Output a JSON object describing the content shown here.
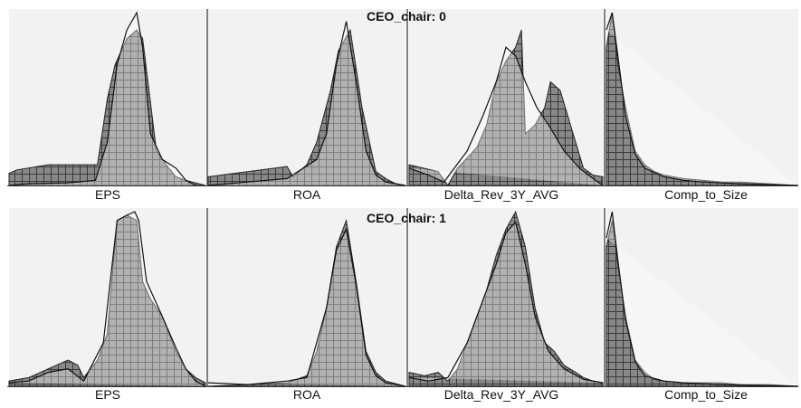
{
  "figure": {
    "background": "#ffffff",
    "panel_background": "#f2f2f2",
    "hist_fill": "#888888",
    "hist_grid": "#3a3a3a",
    "outline_color": "#111111",
    "divider_color": "#555555"
  },
  "chart_data": [
    {
      "type": "area",
      "group_title": "CEO_chair: 0",
      "panels": [
        {
          "variable": "EPS",
          "hist": [
            [
              0,
              7
            ],
            [
              0.04,
              9
            ],
            [
              0.2,
              12
            ],
            [
              0.32,
              12
            ],
            [
              0.45,
              12
            ],
            [
              0.5,
              50
            ],
            [
              0.54,
              70
            ],
            [
              0.6,
              85
            ],
            [
              0.65,
              90
            ],
            [
              0.68,
              85
            ],
            [
              0.75,
              20
            ],
            [
              0.8,
              12
            ],
            [
              0.85,
              5
            ],
            [
              0.9,
              3
            ],
            [
              1,
              0
            ]
          ],
          "curve": [
            [
              0,
              0
            ],
            [
              0.1,
              1
            ],
            [
              0.3,
              1.5
            ],
            [
              0.44,
              3
            ],
            [
              0.5,
              25
            ],
            [
              0.55,
              70
            ],
            [
              0.6,
              90
            ],
            [
              0.65,
              100
            ],
            [
              0.68,
              80
            ],
            [
              0.72,
              30
            ],
            [
              0.78,
              15
            ],
            [
              0.85,
              10
            ],
            [
              0.9,
              3
            ],
            [
              0.95,
              0
            ]
          ]
        },
        {
          "variable": "ROA",
          "hist": [
            [
              0,
              5
            ],
            [
              0.2,
              8
            ],
            [
              0.4,
              11
            ],
            [
              0.43,
              5
            ],
            [
              0.5,
              12
            ],
            [
              0.55,
              25
            ],
            [
              0.62,
              55
            ],
            [
              0.66,
              78
            ],
            [
              0.72,
              90
            ],
            [
              0.78,
              45
            ],
            [
              0.85,
              8
            ],
            [
              0.9,
              4
            ],
            [
              0.95,
              1
            ],
            [
              1,
              0
            ]
          ],
          "curve": [
            [
              0,
              0
            ],
            [
              0.2,
              2
            ],
            [
              0.4,
              4
            ],
            [
              0.55,
              15
            ],
            [
              0.6,
              30
            ],
            [
              0.65,
              70
            ],
            [
              0.7,
              95
            ],
            [
              0.75,
              60
            ],
            [
              0.8,
              20
            ],
            [
              0.85,
              6
            ],
            [
              0.9,
              2
            ],
            [
              1,
              0
            ]
          ]
        },
        {
          "variable": "Delta_Rev_3Y_AVG",
          "hist": [
            [
              0,
              12
            ],
            [
              0.15,
              8
            ],
            [
              0.2,
              0
            ],
            [
              0.25,
              10
            ],
            [
              0.35,
              22
            ],
            [
              0.4,
              35
            ],
            [
              0.45,
              60
            ],
            [
              0.5,
              72
            ],
            [
              0.55,
              80
            ],
            [
              0.58,
              90
            ],
            [
              0.6,
              30
            ],
            [
              0.65,
              35
            ],
            [
              0.7,
              45
            ],
            [
              0.73,
              60
            ],
            [
              0.78,
              55
            ],
            [
              0.82,
              40
            ],
            [
              0.86,
              25
            ],
            [
              0.9,
              10
            ],
            [
              0.95,
              6
            ],
            [
              1,
              5
            ]
          ],
          "curve": [
            [
              0,
              10
            ],
            [
              0.1,
              6
            ],
            [
              0.18,
              2
            ],
            [
              0.3,
              20
            ],
            [
              0.38,
              40
            ],
            [
              0.45,
              60
            ],
            [
              0.5,
              80
            ],
            [
              0.55,
              75
            ],
            [
              0.6,
              60
            ],
            [
              0.66,
              45
            ],
            [
              0.72,
              35
            ],
            [
              0.8,
              20
            ],
            [
              0.88,
              10
            ],
            [
              0.95,
              4
            ],
            [
              1,
              0
            ]
          ]
        },
        {
          "variable": "Comp_to_Size",
          "hist": [
            [
              0,
              80
            ],
            [
              0.03,
              100
            ],
            [
              0.06,
              70
            ],
            [
              0.1,
              45
            ],
            [
              0.15,
              20
            ],
            [
              0.2,
              12
            ],
            [
              0.25,
              8
            ],
            [
              0.3,
              6
            ],
            [
              0.4,
              4
            ],
            [
              0.5,
              3
            ],
            [
              0.6,
              2
            ],
            [
              0.7,
              2
            ],
            [
              0.85,
              1
            ],
            [
              1,
              0
            ]
          ],
          "curve": [
            [
              0,
              90
            ],
            [
              0.03,
              100
            ],
            [
              0.06,
              75
            ],
            [
              0.1,
              40
            ],
            [
              0.15,
              18
            ],
            [
              0.2,
              10
            ],
            [
              0.3,
              5
            ],
            [
              0.4,
              3
            ],
            [
              0.5,
              2
            ],
            [
              0.7,
              1
            ],
            [
              1,
              0
            ]
          ]
        }
      ]
    },
    {
      "type": "area",
      "group_title": "CEO_chair: 1",
      "panels": [
        {
          "variable": "EPS",
          "hist": [
            [
              0,
              3
            ],
            [
              0.1,
              5
            ],
            [
              0.2,
              10
            ],
            [
              0.3,
              15
            ],
            [
              0.35,
              12
            ],
            [
              0.38,
              5
            ],
            [
              0.45,
              15
            ],
            [
              0.5,
              30
            ],
            [
              0.55,
              95
            ],
            [
              0.6,
              98
            ],
            [
              0.65,
              95
            ],
            [
              0.68,
              60
            ],
            [
              0.72,
              50
            ],
            [
              0.78,
              40
            ],
            [
              0.85,
              20
            ],
            [
              0.9,
              10
            ],
            [
              0.95,
              5
            ],
            [
              1,
              2
            ]
          ],
          "curve": [
            [
              0,
              2
            ],
            [
              0.1,
              3
            ],
            [
              0.2,
              8
            ],
            [
              0.3,
              10
            ],
            [
              0.38,
              3
            ],
            [
              0.48,
              25
            ],
            [
              0.55,
              95
            ],
            [
              0.6,
              98
            ],
            [
              0.64,
              100
            ],
            [
              0.66,
              95
            ],
            [
              0.7,
              60
            ],
            [
              0.78,
              40
            ],
            [
              0.85,
              22
            ],
            [
              0.9,
              10
            ],
            [
              0.95,
              3
            ],
            [
              1,
              0
            ]
          ]
        },
        {
          "variable": "ROA",
          "hist": [
            [
              0,
              0
            ],
            [
              0.2,
              1
            ],
            [
              0.4,
              2
            ],
            [
              0.5,
              6
            ],
            [
              0.55,
              20
            ],
            [
              0.6,
              45
            ],
            [
              0.65,
              80
            ],
            [
              0.7,
              95
            ],
            [
              0.75,
              60
            ],
            [
              0.8,
              20
            ],
            [
              0.85,
              8
            ],
            [
              0.9,
              3
            ],
            [
              1,
              0
            ]
          ],
          "curve": [
            [
              0,
              2
            ],
            [
              0.2,
              1
            ],
            [
              0.4,
              3
            ],
            [
              0.5,
              5
            ],
            [
              0.55,
              25
            ],
            [
              0.6,
              45
            ],
            [
              0.65,
              78
            ],
            [
              0.7,
              90
            ],
            [
              0.75,
              58
            ],
            [
              0.8,
              18
            ],
            [
              0.85,
              6
            ],
            [
              0.9,
              2
            ],
            [
              1,
              0
            ]
          ]
        },
        {
          "variable": "Delta_Rev_3Y_AVG",
          "hist": [
            [
              0,
              8
            ],
            [
              0.08,
              6
            ],
            [
              0.15,
              8
            ],
            [
              0.2,
              3
            ],
            [
              0.25,
              10
            ],
            [
              0.3,
              25
            ],
            [
              0.35,
              40
            ],
            [
              0.4,
              55
            ],
            [
              0.45,
              75
            ],
            [
              0.5,
              90
            ],
            [
              0.55,
              100
            ],
            [
              0.6,
              80
            ],
            [
              0.65,
              45
            ],
            [
              0.7,
              25
            ],
            [
              0.75,
              20
            ],
            [
              0.8,
              12
            ],
            [
              0.86,
              8
            ],
            [
              0.9,
              5
            ],
            [
              0.95,
              3
            ],
            [
              1,
              2
            ]
          ],
          "curve": [
            [
              0,
              5
            ],
            [
              0.1,
              3
            ],
            [
              0.2,
              5
            ],
            [
              0.3,
              25
            ],
            [
              0.4,
              55
            ],
            [
              0.45,
              70
            ],
            [
              0.5,
              88
            ],
            [
              0.55,
              94
            ],
            [
              0.6,
              70
            ],
            [
              0.65,
              40
            ],
            [
              0.72,
              20
            ],
            [
              0.8,
              10
            ],
            [
              0.9,
              4
            ],
            [
              1,
              2
            ]
          ]
        },
        {
          "variable": "Comp_to_Size",
          "hist": [
            [
              0,
              80
            ],
            [
              0.03,
              95
            ],
            [
              0.06,
              70
            ],
            [
              0.1,
              40
            ],
            [
              0.15,
              15
            ],
            [
              0.2,
              8
            ],
            [
              0.25,
              4
            ],
            [
              0.3,
              3
            ],
            [
              0.4,
              2
            ],
            [
              0.5,
              2
            ],
            [
              0.6,
              2
            ],
            [
              0.7,
              1
            ],
            [
              0.85,
              1
            ],
            [
              1,
              0
            ]
          ],
          "curve": [
            [
              0,
              85
            ],
            [
              0.03,
              100
            ],
            [
              0.06,
              72
            ],
            [
              0.1,
              38
            ],
            [
              0.15,
              14
            ],
            [
              0.2,
              6
            ],
            [
              0.3,
              3
            ],
            [
              0.4,
              2
            ],
            [
              0.6,
              1
            ],
            [
              1,
              0
            ]
          ]
        }
      ]
    }
  ]
}
